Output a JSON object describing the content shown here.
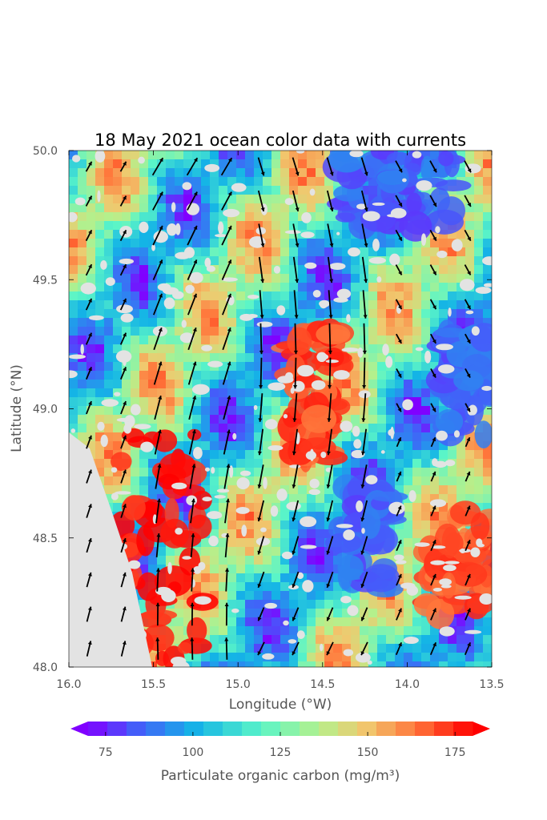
{
  "chart_data": {
    "type": "heatmap",
    "title": "18 May 2021 ocean color data with currents",
    "xlabel": "Longitude (°W)",
    "ylabel": "Latitude (°N)",
    "xlim": [
      16.0,
      13.5
    ],
    "ylim": [
      48.0,
      50.0
    ],
    "xticks": [
      "16.0",
      "15.5",
      "15.0",
      "14.5",
      "14.0",
      "13.5"
    ],
    "xtick_values": [
      16.0,
      15.5,
      15.0,
      14.5,
      14.0,
      13.5
    ],
    "yticks": [
      "48.0",
      "48.5",
      "49.0",
      "49.5",
      "50.0"
    ],
    "ytick_values": [
      48.0,
      48.5,
      49.0,
      49.5,
      50.0
    ],
    "colorbar": {
      "label": "Particulate organic carbon (mg/m³)",
      "min": 70,
      "max": 180,
      "ticks": [
        "75",
        "100",
        "125",
        "150",
        "175"
      ],
      "tick_values": [
        75,
        100,
        125,
        150,
        175
      ],
      "colormap": "rainbow",
      "extend": "both"
    },
    "missing_data_color": "#e3e3e3",
    "grid": false,
    "features": [
      {
        "name": "high-carbon band southwest",
        "lon": [
          15.7,
          15.2
        ],
        "lat": [
          48.0,
          48.9
        ],
        "level": 178
      },
      {
        "name": "high-carbon eddy center",
        "lon": [
          14.7,
          14.4
        ],
        "lat": [
          48.8,
          49.3
        ],
        "level": 170
      },
      {
        "name": "low-carbon filament",
        "lon": [
          14.4,
          14.1
        ],
        "lat": [
          48.3,
          48.7
        ],
        "level": 85
      },
      {
        "name": "low-carbon north east",
        "lon": [
          14.4,
          13.7
        ],
        "lat": [
          49.7,
          50.0
        ],
        "level": 85
      },
      {
        "name": "low-carbon east",
        "lon": [
          13.8,
          13.5
        ],
        "lat": [
          48.9,
          49.3
        ],
        "level": 85
      },
      {
        "name": "high-carbon east",
        "lon": [
          13.9,
          13.5
        ],
        "lat": [
          48.2,
          48.6
        ],
        "level": 168
      }
    ],
    "currents": {
      "description": "velocity arrows over the field (quiver)",
      "arrow_color": "#000000"
    }
  }
}
